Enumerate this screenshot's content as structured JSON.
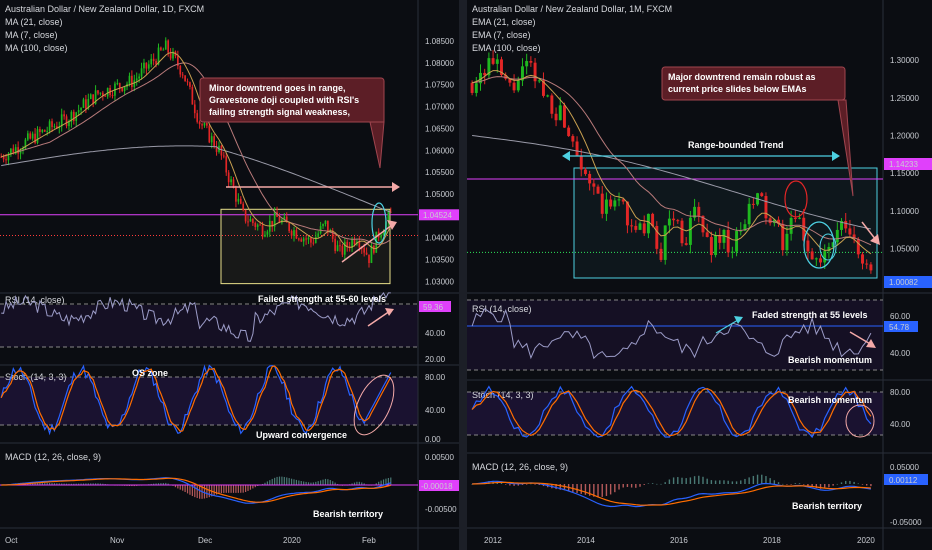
{
  "colors": {
    "bg": "#0b0d12",
    "up": "#26a69a",
    "down": "#ef5350",
    "candle_up": "#1fb81f",
    "candle_down": "#e32626",
    "magenta": "#e040fb",
    "red_line": "#ff3b3b",
    "ma21": "#b87a7a",
    "ma7": "#c8a050",
    "ma100": "#9a9aa8",
    "rsi": "#9c9cc8",
    "stoch_k": "#2962ff",
    "stoch_d": "#ff6d00",
    "macd": "#2962ff",
    "signal": "#ff6d00",
    "annotation_bg": "#5c1e26",
    "range_box": "#e8e08a",
    "range_box_right": "#4dd0e1",
    "arrow": "#f4a9a8",
    "cyan_arrow": "#4dd0e1"
  },
  "chart_data": [
    {
      "type": "candlestick",
      "title": "Australian Dollar / New Zealand Dollar, 1D, FXCM",
      "legend": [
        "MA (21, close)",
        "MA (7, close)",
        "MA (100, close)"
      ],
      "price_axis": [
        "1.08500",
        "1.08000",
        "1.07500",
        "1.07000",
        "1.06500",
        "1.06000",
        "1.05500",
        "1.05000",
        "1.04500",
        "1.04000",
        "1.03500",
        "1.03000"
      ],
      "price_range": [
        1.0285,
        1.0875
      ],
      "x_ticks": [
        "Oct",
        "Nov",
        "Dec",
        "2020",
        "Feb"
      ],
      "current_price": "1.04524",
      "reference_level": 1.0405,
      "range_box": {
        "price_low": 1.0295,
        "price_high": 1.0465
      },
      "annotation": "Minor downtrend goes in range, Gravestone doji coupled with RSI's failing strength signal weakness,",
      "rsi": {
        "title": "RSI (14, close)",
        "value_label": "59.36",
        "ticks": [
          "40.00",
          "20.00"
        ],
        "note": "Failed strength at 55-60 levels"
      },
      "stoch": {
        "title": "Stoch (14, 3, 3)",
        "ticks": [
          "80.00",
          "40.00",
          "0.00"
        ],
        "note_top": "OS zone",
        "note_bottom": "Upward convergence"
      },
      "macd": {
        "title": "MACD (12, 26, close, 9)",
        "ticks": [
          "0.00500",
          "-0.00500"
        ],
        "value_label": "-0.00018",
        "note": "Bearish territory"
      }
    },
    {
      "type": "candlestick",
      "title": "Australian Dollar / New Zealand Dollar, 1M, FXCM",
      "legend": [
        "EMA (21, close)",
        "EMA (7, close)",
        "EMA (100, close)"
      ],
      "price_axis": [
        "1.30000",
        "1.25000",
        "1.20000",
        "1.15000",
        "1.10000",
        "1.05000"
      ],
      "price_range": [
        0.995,
        1.34
      ],
      "x_ticks": [
        "2012",
        "2014",
        "2016",
        "2018",
        "2020"
      ],
      "resistance_label": "1.14233",
      "current_price": "1.00082",
      "range_label": "Range-bounded Trend",
      "annotation": "Major downtrend remain robust as current price slides below EMAs",
      "rsi": {
        "title": "RSI (14, close)",
        "value_label": "54.78",
        "ticks": [
          "60.00",
          "40.00"
        ],
        "note": "Faded strength at 55 levels",
        "note2": "Bearish momentum"
      },
      "stoch": {
        "title": "Stoch (14, 3, 3)",
        "ticks": [
          "80.00",
          "40.00"
        ],
        "note": "Bearish momentum"
      },
      "macd": {
        "title": "MACD (12, 26, close, 9)",
        "ticks": [
          "0.05000",
          "-0.05000"
        ],
        "value_label": "0.00112",
        "note": "Bearish territory"
      }
    }
  ]
}
